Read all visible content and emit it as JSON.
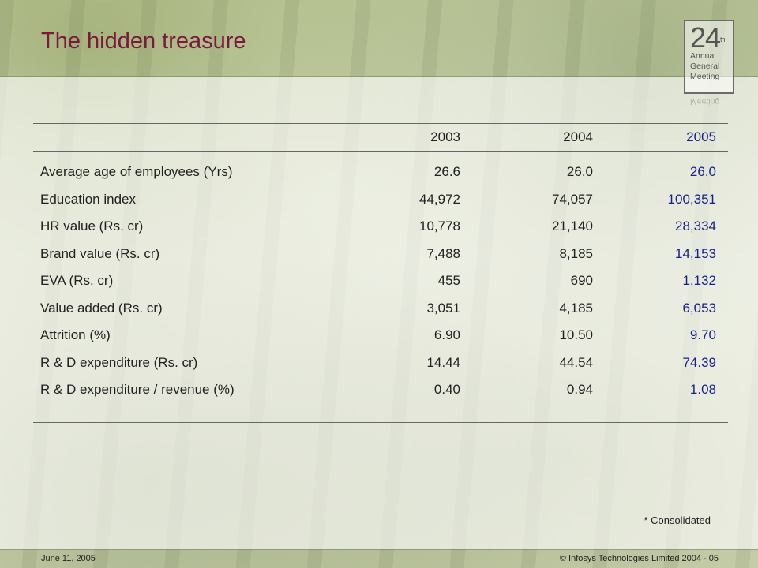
{
  "slide": {
    "title": "The hidden treasure",
    "logo": {
      "number": "24",
      "superscript": "th",
      "line1": "Annual",
      "line2": "General",
      "line3": "Meeting"
    },
    "footnote": "* Consolidated",
    "footer_date": "June 11, 2005",
    "footer_copyright": "© Infosys Technologies Limited 2004 - 05"
  },
  "table": {
    "years": [
      "2003",
      "2004",
      "2005"
    ],
    "rows": [
      {
        "label": "Average age of employees (Yrs)",
        "values": [
          "26.6",
          "26.0",
          "26.0"
        ]
      },
      {
        "label": "Education index",
        "values": [
          "44,972",
          "74,057",
          "100,351"
        ]
      },
      {
        "label": "HR value (Rs. cr)",
        "values": [
          "10,778",
          "21,140",
          "28,334"
        ]
      },
      {
        "label": "Brand value (Rs. cr)",
        "values": [
          "7,488",
          "8,185",
          "14,153"
        ]
      },
      {
        "label": "EVA (Rs. cr)",
        "values": [
          "455",
          "690",
          "1,132"
        ]
      },
      {
        "label": "Value added (Rs. cr)",
        "values": [
          "3,051",
          "4,185",
          "6,053"
        ]
      },
      {
        "label": "Attrition (%)",
        "values": [
          "6.90",
          "10.50",
          "9.70"
        ]
      },
      {
        "label": "R & D expenditure (Rs. cr)",
        "values": [
          "14.44",
          "44.54",
          "74.39"
        ]
      },
      {
        "label": "R & D expenditure / revenue (%)",
        "values": [
          "0.40",
          "0.94",
          "1.08"
        ]
      }
    ]
  },
  "colors": {
    "title": "#7a1a3a",
    "highlight_column": "#1a1f8a"
  }
}
